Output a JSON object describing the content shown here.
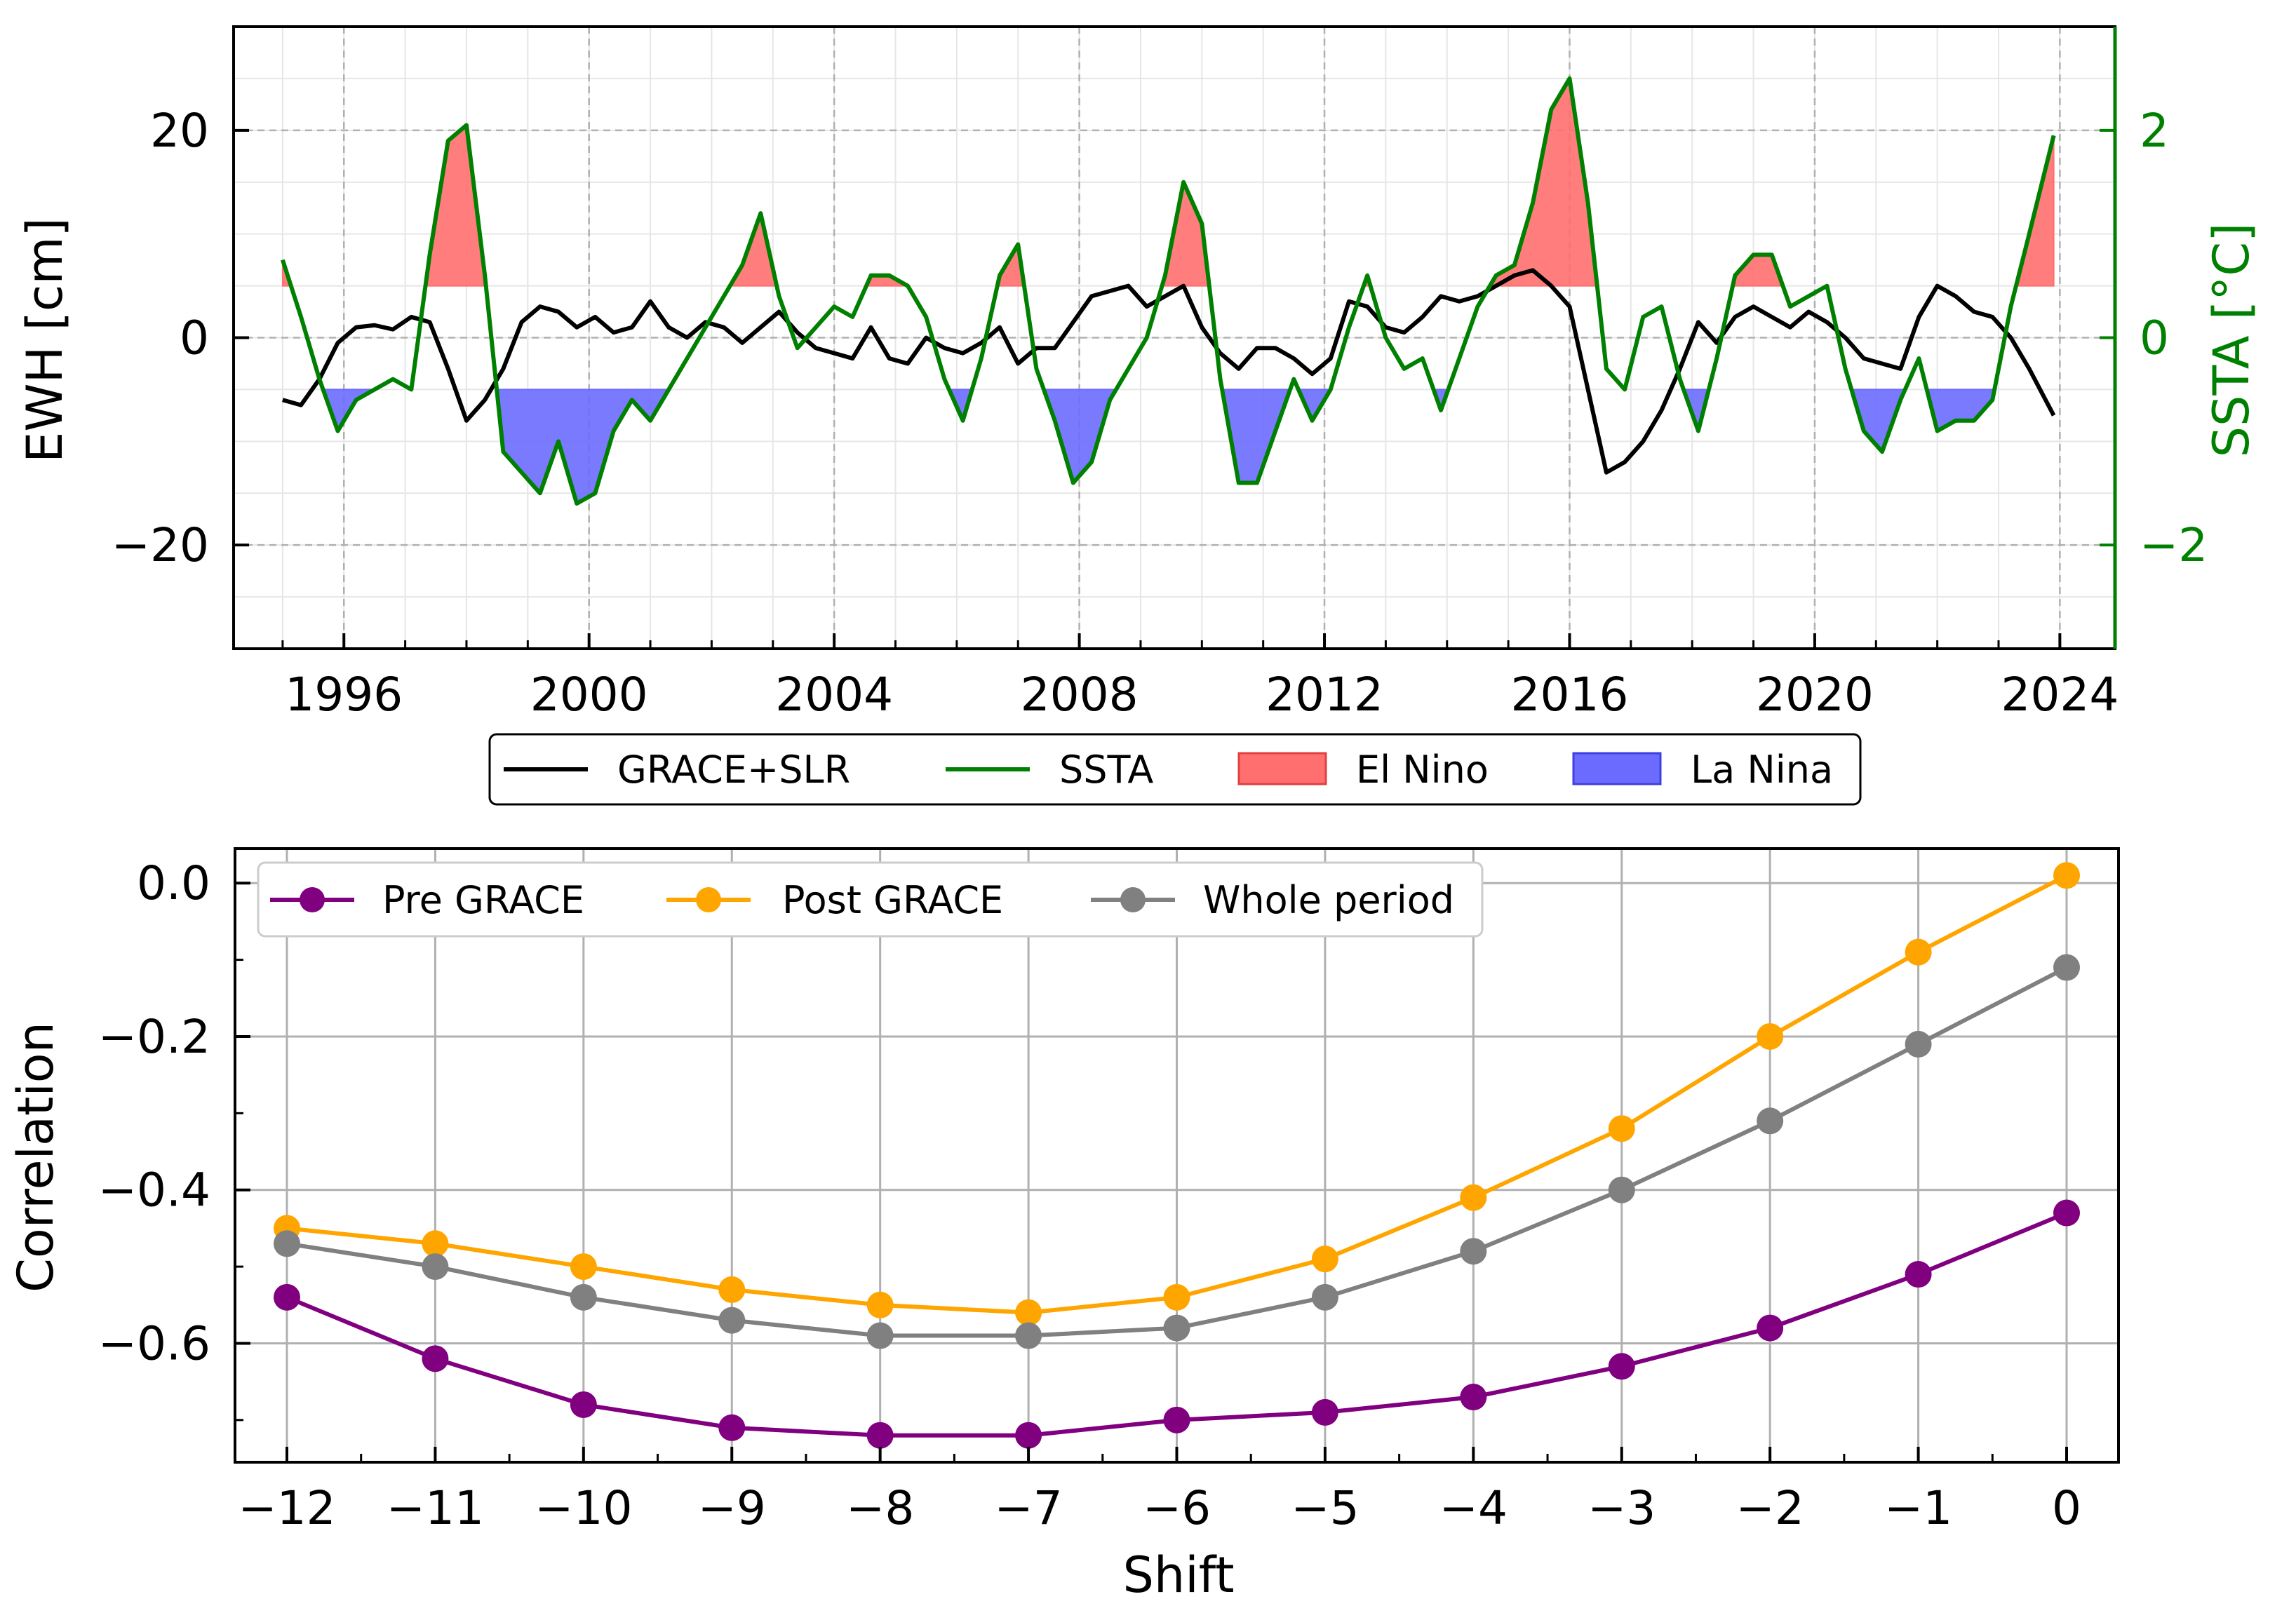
{
  "colors": {
    "ewh_line": "#000000",
    "ssta_line": "#008000",
    "el_nino_fill": "#ff6f6f",
    "la_nina_fill": "#6b6bff",
    "pre_grace": "#800080",
    "post_grace": "#ffa500",
    "whole_period": "#808080",
    "grid": "#b0b0b0"
  },
  "chart_data": [
    {
      "type": "line",
      "ylabel": "EWH [cm]",
      "y2label": "SSTA [°C]",
      "xlim": [
        1994.2,
        2024.9
      ],
      "ylim": [
        -30,
        30
      ],
      "y2lim": [
        -3,
        3
      ],
      "xticks": [
        "1996",
        "2000",
        "2004",
        "2008",
        "2012",
        "2016",
        "2020",
        "2024"
      ],
      "xtick_values": [
        1996,
        2000,
        2004,
        2008,
        2012,
        2016,
        2020,
        2024
      ],
      "yticks": [
        "20",
        "0",
        "−20"
      ],
      "ytick_values": [
        20,
        0,
        -20
      ],
      "y2ticks": [
        "2",
        "0",
        "−2"
      ],
      "y2tick_values": [
        2,
        0,
        -2
      ],
      "grid": true,
      "legend_position": "below",
      "legend": {
        "ewh": "GRACE+SLR",
        "ssta": "SSTA",
        "el_nino": "El Nino",
        "la_nina": "La Nina"
      },
      "thresholds": {
        "el_nino": 0.5,
        "la_nina": -0.5
      },
      "series": [
        {
          "name": "GRACE+SLR",
          "axis": "left",
          "x": [
            1995.0,
            1995.3,
            1995.6,
            1995.9,
            1996.2,
            1996.5,
            1996.8,
            1997.1,
            1997.4,
            1997.7,
            1998.0,
            1998.3,
            1998.6,
            1998.9,
            1999.2,
            1999.5,
            1999.8,
            2000.1,
            2000.4,
            2000.7,
            2001.0,
            2001.3,
            2001.6,
            2001.9,
            2002.2,
            2002.5,
            2002.8,
            2003.1,
            2003.4,
            2003.7,
            2004.0,
            2004.3,
            2004.6,
            2004.9,
            2005.2,
            2005.5,
            2005.8,
            2006.1,
            2006.4,
            2006.7,
            2007.0,
            2007.3,
            2007.6,
            2007.9,
            2008.2,
            2008.5,
            2008.8,
            2009.1,
            2009.4,
            2009.7,
            2010.0,
            2010.3,
            2010.6,
            2010.9,
            2011.2,
            2011.5,
            2011.8,
            2012.1,
            2012.4,
            2012.7,
            2013.0,
            2013.3,
            2013.6,
            2013.9,
            2014.2,
            2014.5,
            2014.8,
            2015.1,
            2015.4,
            2015.7,
            2016.0,
            2016.3,
            2016.6,
            2016.9,
            2017.2,
            2017.5,
            2017.8,
            2018.1,
            2018.4,
            2018.7,
            2019.0,
            2019.3,
            2019.6,
            2019.9,
            2020.2,
            2020.5,
            2020.8,
            2021.1,
            2021.4,
            2021.7,
            2022.0,
            2022.3,
            2022.6,
            2022.9,
            2023.2,
            2023.5,
            2023.9
          ],
          "y": [
            -6,
            -6.5,
            -4,
            -0.5,
            1,
            1.2,
            0.8,
            2,
            1.5,
            -3,
            -8,
            -6,
            -3,
            1.5,
            3,
            2.5,
            1,
            2,
            0.5,
            1,
            3.5,
            1,
            0,
            1.5,
            1,
            -0.5,
            1,
            2.5,
            0.5,
            -1,
            -1.5,
            -2,
            1,
            -2,
            -2.5,
            0,
            -1,
            -1.5,
            -0.5,
            1,
            -2.5,
            -1,
            -1,
            1.5,
            4,
            4.5,
            5,
            3,
            4,
            5,
            1,
            -1.5,
            -3,
            -1,
            -1,
            -2,
            -3.5,
            -2,
            3.5,
            3,
            1,
            0.5,
            2,
            4,
            3.5,
            4,
            5,
            6,
            6.5,
            5,
            3,
            -5,
            -13,
            -12,
            -10,
            -7,
            -3,
            1.5,
            -0.5,
            2,
            3,
            2,
            1,
            2.5,
            1.5,
            0,
            -2,
            -2.5,
            -3,
            2,
            5,
            4,
            2.5,
            2,
            0,
            -3,
            -7.5
          ]
        },
        {
          "name": "SSTA",
          "axis": "right",
          "x": [
            1995.0,
            1995.3,
            1995.6,
            1995.9,
            1996.2,
            1996.5,
            1996.8,
            1997.1,
            1997.4,
            1997.7,
            1998.0,
            1998.3,
            1998.6,
            1998.9,
            1999.2,
            1999.5,
            1999.8,
            2000.1,
            2000.4,
            2000.7,
            2001.0,
            2001.3,
            2001.6,
            2001.9,
            2002.2,
            2002.5,
            2002.8,
            2003.1,
            2003.4,
            2003.7,
            2004.0,
            2004.3,
            2004.6,
            2004.9,
            2005.2,
            2005.5,
            2005.8,
            2006.1,
            2006.4,
            2006.7,
            2007.0,
            2007.3,
            2007.6,
            2007.9,
            2008.2,
            2008.5,
            2008.8,
            2009.1,
            2009.4,
            2009.7,
            2010.0,
            2010.3,
            2010.6,
            2010.9,
            2011.2,
            2011.5,
            2011.8,
            2012.1,
            2012.4,
            2012.7,
            2013.0,
            2013.3,
            2013.6,
            2013.9,
            2014.2,
            2014.5,
            2014.8,
            2015.1,
            2015.4,
            2015.7,
            2016.0,
            2016.3,
            2016.6,
            2016.9,
            2017.2,
            2017.5,
            2017.8,
            2018.1,
            2018.4,
            2018.7,
            2019.0,
            2019.3,
            2019.6,
            2019.9,
            2020.2,
            2020.5,
            2020.8,
            2021.1,
            2021.4,
            2021.7,
            2022.0,
            2022.3,
            2022.6,
            2022.9,
            2023.2,
            2023.5,
            2023.9
          ],
          "y": [
            0.75,
            0.2,
            -0.4,
            -0.9,
            -0.6,
            -0.5,
            -0.4,
            -0.5,
            0.8,
            1.9,
            2.05,
            0.6,
            -1.1,
            -1.3,
            -1.5,
            -1.0,
            -1.6,
            -1.5,
            -0.9,
            -0.6,
            -0.8,
            -0.5,
            -0.2,
            0.1,
            0.4,
            0.7,
            1.2,
            0.4,
            -0.1,
            0.1,
            0.3,
            0.2,
            0.6,
            0.6,
            0.5,
            0.2,
            -0.4,
            -0.8,
            -0.2,
            0.6,
            0.9,
            -0.3,
            -0.8,
            -1.4,
            -1.2,
            -0.6,
            -0.3,
            0.0,
            0.6,
            1.5,
            1.1,
            -0.4,
            -1.4,
            -1.4,
            -0.9,
            -0.4,
            -0.8,
            -0.5,
            0.1,
            0.6,
            0.0,
            -0.3,
            -0.2,
            -0.7,
            -0.2,
            0.3,
            0.6,
            0.7,
            1.3,
            2.2,
            2.5,
            1.3,
            -0.3,
            -0.5,
            0.2,
            0.3,
            -0.4,
            -0.9,
            -0.2,
            0.6,
            0.8,
            0.8,
            0.3,
            0.4,
            0.5,
            -0.3,
            -0.9,
            -1.1,
            -0.6,
            -0.2,
            -0.9,
            -0.8,
            -0.8,
            -0.6,
            0.3,
            1.0,
            1.95
          ]
        }
      ]
    },
    {
      "type": "line",
      "xlabel": "Shift",
      "ylabel": "Correlation",
      "xlim": [
        -12.35,
        0.35
      ],
      "ylim": [
        -0.755,
        0.045
      ],
      "xticks": [
        "−12",
        "−11",
        "−10",
        "−9",
        "−8",
        "−7",
        "−6",
        "−5",
        "−4",
        "−3",
        "−2",
        "−1",
        "0"
      ],
      "xtick_values": [
        -12,
        -11,
        -10,
        -9,
        -8,
        -7,
        -6,
        -5,
        -4,
        -3,
        -2,
        -1,
        0
      ],
      "yticks": [
        "0.0",
        "−0.2",
        "−0.4",
        "−0.6"
      ],
      "ytick_values": [
        0.0,
        -0.2,
        -0.4,
        -0.6
      ],
      "grid": true,
      "legend_position": "top-left",
      "x": [
        -12,
        -11,
        -10,
        -9,
        -8,
        -7,
        -6,
        -5,
        -4,
        -3,
        -2,
        -1,
        0
      ],
      "series": [
        {
          "name": "Pre GRACE",
          "values": [
            -0.54,
            -0.62,
            -0.68,
            -0.71,
            -0.72,
            -0.72,
            -0.7,
            -0.69,
            -0.67,
            -0.63,
            -0.58,
            -0.51,
            -0.43
          ]
        },
        {
          "name": "Post GRACE",
          "values": [
            -0.45,
            -0.47,
            -0.5,
            -0.53,
            -0.55,
            -0.56,
            -0.54,
            -0.49,
            -0.41,
            -0.32,
            -0.2,
            -0.09,
            0.01
          ]
        },
        {
          "name": "Whole period",
          "values": [
            -0.47,
            -0.5,
            -0.54,
            -0.57,
            -0.59,
            -0.59,
            -0.58,
            -0.54,
            -0.48,
            -0.4,
            -0.31,
            -0.21,
            -0.11
          ]
        }
      ]
    }
  ]
}
